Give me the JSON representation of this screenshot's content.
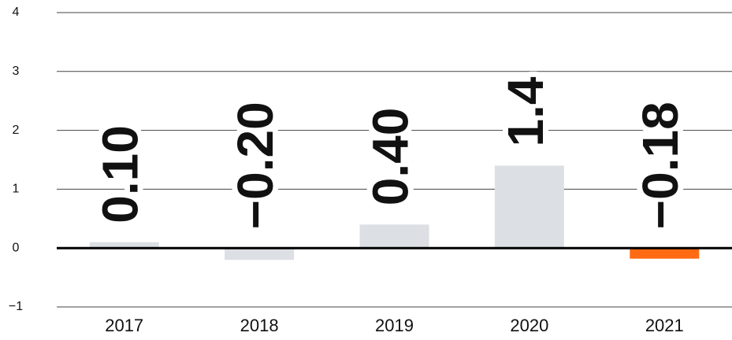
{
  "chart_data": {
    "type": "bar",
    "categories": [
      "2017",
      "2018",
      "2019",
      "2020",
      "2021"
    ],
    "values": [
      0.1,
      -0.2,
      0.4,
      1.4,
      -0.18
    ],
    "value_labels": [
      "0.10",
      "−0.20",
      "0.40",
      "1.4",
      "−0.18"
    ],
    "colors": [
      "#dcdfe3",
      "#dcdfe3",
      "#dcdfe3",
      "#dcdfe3",
      "#ff6a13"
    ],
    "ylim": [
      -1,
      4
    ],
    "yticks": [
      {
        "value": -1,
        "label": "−1"
      },
      0,
      1,
      2,
      3,
      4
    ],
    "grid": true
  }
}
